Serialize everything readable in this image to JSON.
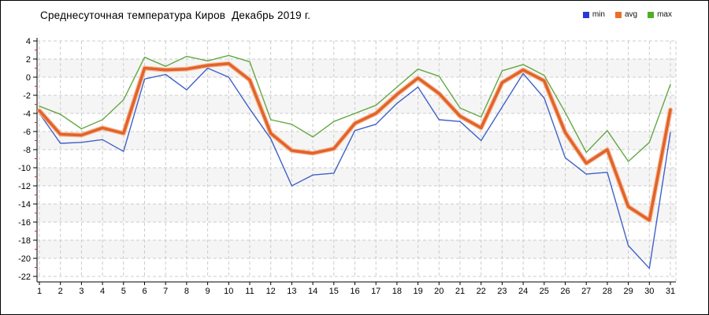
{
  "title": "Среднесуточная температура Киров  Декабрь 2019 г.",
  "legend": {
    "items": [
      {
        "label": "min",
        "color": "#2b38d6"
      },
      {
        "label": "avg",
        "color": "#e8702a"
      },
      {
        "label": "max",
        "color": "#4fae26"
      }
    ]
  },
  "chart_data": {
    "type": "line",
    "title": "Среднесуточная температура Киров  Декабрь 2019 г.",
    "xlabel": "",
    "ylabel": "",
    "x": [
      1,
      2,
      3,
      4,
      5,
      6,
      7,
      8,
      9,
      10,
      11,
      12,
      13,
      14,
      15,
      16,
      17,
      18,
      19,
      20,
      21,
      22,
      23,
      24,
      25,
      26,
      27,
      28,
      29,
      30,
      31
    ],
    "ylim": [
      -22,
      4
    ],
    "ytick_step": 2,
    "grid": true,
    "legend_position": "top-right",
    "axis": {
      "line_color": "#000000",
      "major_tick_color": "#000000",
      "minor_tick_color": "#cc3326",
      "gridline_color": "#cccccc",
      "band_color": "#f5f5f5"
    },
    "series": [
      {
        "name": "min",
        "color": "#4060c8",
        "width": 1.4,
        "values": [
          -4.0,
          -7.3,
          -7.2,
          -6.9,
          -8.2,
          -0.2,
          0.3,
          -1.4,
          1.0,
          0.0,
          -3.5,
          -6.8,
          -12.0,
          -10.8,
          -10.6,
          -5.9,
          -5.2,
          -2.9,
          -1.1,
          -4.7,
          -4.9,
          -7.0,
          -3.3,
          0.4,
          -2.3,
          -8.9,
          -10.7,
          -10.5,
          -18.6,
          -21.1,
          -6.1
        ]
      },
      {
        "name": "avg",
        "color": "#e2622b",
        "halo": "#f6b890",
        "width": 3.5,
        "values": [
          -3.7,
          -6.3,
          -6.4,
          -5.6,
          -6.2,
          1.0,
          0.8,
          0.9,
          1.3,
          1.5,
          -0.3,
          -6.2,
          -8.1,
          -8.4,
          -7.9,
          -5.1,
          -4.0,
          -1.9,
          -0.1,
          -1.8,
          -4.3,
          -5.6,
          -0.6,
          0.8,
          -0.4,
          -6.1,
          -9.5,
          -8.0,
          -14.3,
          -15.8,
          -3.6
        ]
      },
      {
        "name": "max",
        "color": "#64a844",
        "width": 1.4,
        "values": [
          -3.2,
          -4.1,
          -5.7,
          -4.7,
          -2.5,
          2.2,
          1.2,
          2.3,
          1.8,
          2.4,
          1.7,
          -4.7,
          -5.2,
          -6.6,
          -4.9,
          -4.0,
          -3.1,
          -1.1,
          0.9,
          0.1,
          -3.4,
          -4.4,
          0.7,
          1.4,
          0.2,
          -3.9,
          -8.3,
          -5.9,
          -9.3,
          -7.2,
          -0.8
        ]
      }
    ]
  }
}
